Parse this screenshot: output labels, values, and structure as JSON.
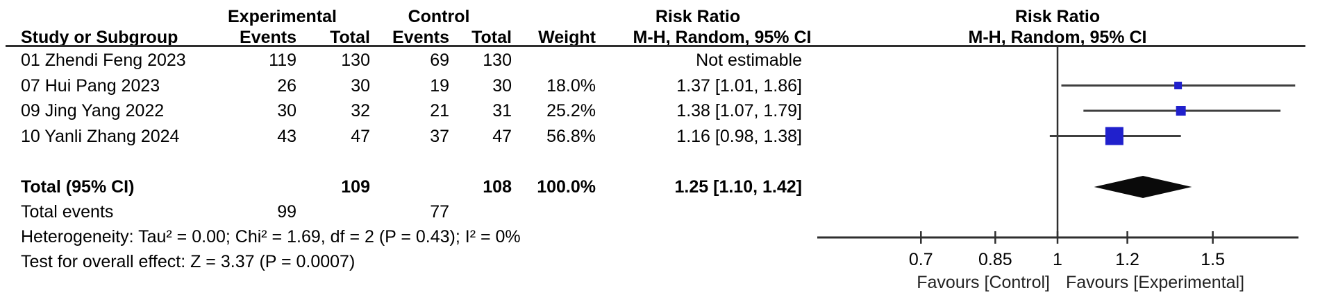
{
  "table": {
    "group_headers": {
      "experimental": "Experimental",
      "control": "Control",
      "risk_ratio_text_col": "Risk Ratio",
      "risk_ratio_plot_col": "Risk Ratio"
    },
    "col_headers": {
      "study": "Study or Subgroup",
      "events_exp": "Events",
      "total_exp": "Total",
      "events_ctl": "Events",
      "total_ctl": "Total",
      "weight": "Weight",
      "ci_text_col": "M-H, Random, 95% CI",
      "ci_plot_col": "M-H, Random, 95% CI"
    },
    "rows": [
      {
        "study": "01 Zhendi Feng 2023",
        "events_exp": "119",
        "total_exp": "130",
        "events_ctl": "69",
        "total_ctl": "130",
        "weight": "",
        "ci": "Not estimable"
      },
      {
        "study": "07 Hui Pang 2023",
        "events_exp": "26",
        "total_exp": "30",
        "events_ctl": "19",
        "total_ctl": "30",
        "weight": "18.0%",
        "ci": "1.37 [1.01, 1.86]"
      },
      {
        "study": "09 Jing Yang 2022",
        "events_exp": "30",
        "total_exp": "32",
        "events_ctl": "21",
        "total_ctl": "31",
        "weight": "25.2%",
        "ci": "1.38 [1.07, 1.79]"
      },
      {
        "study": "10 Yanli Zhang 2024",
        "events_exp": "43",
        "total_exp": "47",
        "events_ctl": "37",
        "total_ctl": "47",
        "weight": "56.8%",
        "ci": "1.16 [0.98, 1.38]"
      }
    ],
    "total_row": {
      "label": "Total (95% CI)",
      "total_exp": "109",
      "total_ctl": "108",
      "weight": "100.0%",
      "ci": "1.25 [1.10, 1.42]"
    },
    "total_events_row": {
      "label": "Total events",
      "events_exp": "99",
      "events_ctl": "77"
    },
    "heterogeneity": "Heterogeneity: Tau² = 0.00; Chi² = 1.69, df = 2 (P = 0.43); I² = 0%",
    "overall_effect": "Test for overall effect: Z = 3.37 (P = 0.0007)"
  },
  "chart_data": {
    "type": "forest",
    "effect_measure": "Risk Ratio",
    "method": "M-H, Random, 95% CI",
    "x_scale": "log",
    "x_axis": {
      "min": 0.53,
      "max": 1.87,
      "null_line": 1,
      "ticks": [
        {
          "value": 0.7,
          "label": "0.7"
        },
        {
          "value": 0.85,
          "label": "0.85"
        },
        {
          "value": 1,
          "label": "1"
        },
        {
          "value": 1.2,
          "label": "1.2"
        },
        {
          "value": 1.5,
          "label": "1.5"
        }
      ]
    },
    "studies": [
      {
        "name": "01 Zhendi Feng 2023",
        "estimable": false
      },
      {
        "name": "07 Hui Pang 2023",
        "rr": 1.37,
        "ci_low": 1.01,
        "ci_high": 1.86,
        "weight_pct": 18.0
      },
      {
        "name": "09 Jing Yang 2022",
        "rr": 1.38,
        "ci_low": 1.07,
        "ci_high": 1.79,
        "weight_pct": 25.2
      },
      {
        "name": "10 Yanli Zhang 2024",
        "rr": 1.16,
        "ci_low": 0.98,
        "ci_high": 1.38,
        "weight_pct": 56.8
      }
    ],
    "total": {
      "rr": 1.25,
      "ci_low": 1.1,
      "ci_high": 1.42
    },
    "favours_left": "Favours [Control]",
    "favours_right": "Favours [Experimental]",
    "colors": {
      "marker": "#2020cc",
      "diamond": "#0a0a0a",
      "ci_line": "#3f3f3f",
      "axis": "#2e2e2e"
    }
  }
}
